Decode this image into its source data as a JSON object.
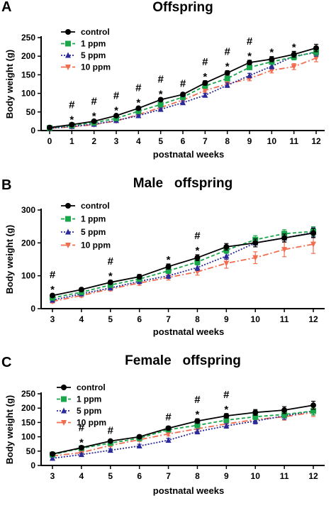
{
  "colors": {
    "control": "#000000",
    "1 ppm": "#1aa64a",
    "5 ppm": "#2b2a9a",
    "10 ppm": "#f26c4f"
  },
  "markers": {
    "control": "circle",
    "1 ppm": "square",
    "5 ppm": "triangle-up",
    "10 ppm": "triangle-down"
  },
  "chart_data": [
    {
      "type": "line",
      "panel": "A",
      "title": "Offspring",
      "xlabel": "postnatal weeks",
      "ylabel": "Body weight (g)",
      "x": [
        0,
        1,
        2,
        3,
        4,
        5,
        6,
        7,
        8,
        9,
        10,
        11,
        12
      ],
      "xlim": [
        0,
        12
      ],
      "ylim": [
        0,
        250
      ],
      "yticks": [
        0,
        50,
        100,
        150,
        200,
        250
      ],
      "legend_position": "top-left",
      "series": [
        {
          "name": "control",
          "values": [
            8,
            16,
            25,
            40,
            60,
            83,
            97,
            128,
            155,
            183,
            192,
            205,
            222
          ],
          "errors": [
            2,
            2,
            3,
            3,
            4,
            4,
            5,
            6,
            6,
            6,
            7,
            8,
            10
          ]
        },
        {
          "name": "1 ppm",
          "values": [
            7,
            14,
            21,
            33,
            52,
            70,
            90,
            120,
            140,
            170,
            185,
            198,
            212
          ],
          "errors": [
            2,
            2,
            3,
            3,
            4,
            4,
            5,
            6,
            6,
            6,
            7,
            8,
            10
          ]
        },
        {
          "name": "5 ppm",
          "values": [
            6,
            11,
            17,
            27,
            40,
            57,
            75,
            95,
            122,
            148,
            173,
            200,
            210
          ],
          "errors": [
            2,
            2,
            2,
            3,
            3,
            4,
            5,
            5,
            6,
            6,
            7,
            8,
            10
          ]
        },
        {
          "name": "10 ppm",
          "values": [
            6,
            10,
            16,
            26,
            43,
            62,
            82,
            108,
            125,
            140,
            162,
            172,
            195
          ],
          "errors": [
            2,
            2,
            2,
            3,
            3,
            4,
            5,
            5,
            6,
            6,
            7,
            8,
            10
          ]
        }
      ],
      "annotations": [
        {
          "x": 1,
          "marks": [
            "#",
            "*"
          ]
        },
        {
          "x": 2,
          "marks": [
            "#",
            "*"
          ]
        },
        {
          "x": 3,
          "marks": [
            "#",
            "*"
          ]
        },
        {
          "x": 4,
          "marks": [
            "#",
            "*"
          ]
        },
        {
          "x": 5,
          "marks": [
            "#",
            "*"
          ]
        },
        {
          "x": 6,
          "marks": [
            "#"
          ]
        },
        {
          "x": 7,
          "marks": [
            "#",
            "*"
          ]
        },
        {
          "x": 8,
          "marks": [
            "#",
            "*"
          ]
        },
        {
          "x": 9,
          "marks": [
            "#",
            "*"
          ]
        },
        {
          "x": 10,
          "marks": [
            "*"
          ]
        },
        {
          "x": 11,
          "marks": [
            "*"
          ]
        }
      ]
    },
    {
      "type": "line",
      "panel": "B",
      "title": "Male   offspring",
      "xlabel": "postnatal weeks",
      "ylabel": "Body weight (g)",
      "x": [
        3,
        4,
        5,
        6,
        7,
        8,
        9,
        10,
        11,
        12
      ],
      "xlim": [
        3,
        12
      ],
      "ylim": [
        0,
        300
      ],
      "yticks": [
        0,
        100,
        200,
        300
      ],
      "legend_position": "top-left",
      "series": [
        {
          "name": "control",
          "values": [
            40,
            58,
            80,
            97,
            128,
            155,
            188,
            200,
            215,
            230
          ],
          "errors": [
            5,
            5,
            6,
            7,
            8,
            9,
            10,
            12,
            12,
            14
          ]
        },
        {
          "name": "1 ppm",
          "values": [
            33,
            50,
            72,
            90,
            115,
            142,
            178,
            210,
            228,
            235
          ],
          "errors": [
            5,
            5,
            6,
            7,
            8,
            9,
            10,
            12,
            12,
            14
          ]
        },
        {
          "name": "5 ppm",
          "values": [
            26,
            45,
            63,
            83,
            100,
            125,
            160,
            200,
            215,
            232
          ],
          "errors": [
            5,
            5,
            6,
            7,
            8,
            9,
            10,
            12,
            12,
            14
          ]
        },
        {
          "name": "10 ppm",
          "values": [
            22,
            40,
            60,
            78,
            95,
            112,
            138,
            155,
            180,
            196
          ],
          "errors": [
            5,
            5,
            6,
            7,
            8,
            10,
            15,
            18,
            22,
            28
          ]
        }
      ],
      "annotations": [
        {
          "x": 3,
          "marks": [
            "#",
            "*"
          ]
        },
        {
          "x": 5,
          "marks": [
            "#",
            "*"
          ]
        },
        {
          "x": 7,
          "marks": [
            "*"
          ]
        },
        {
          "x": 8,
          "marks": [
            "#",
            "*"
          ]
        }
      ]
    },
    {
      "type": "line",
      "panel": "C",
      "title": "Female   offspring",
      "xlabel": "postnatal weeks",
      "ylabel": "Body weight (g)",
      "x": [
        3,
        4,
        5,
        6,
        7,
        8,
        9,
        10,
        11,
        12
      ],
      "xlim": [
        3,
        12
      ],
      "ylim": [
        0,
        250
      ],
      "yticks": [
        0,
        50,
        100,
        150,
        200,
        250
      ],
      "legend_position": "top-left",
      "series": [
        {
          "name": "control",
          "values": [
            40,
            62,
            85,
            100,
            130,
            155,
            173,
            185,
            193,
            210
          ],
          "errors": [
            3,
            4,
            5,
            6,
            7,
            8,
            8,
            10,
            12,
            14
          ]
        },
        {
          "name": "1 ppm",
          "values": [
            38,
            60,
            78,
            95,
            125,
            140,
            158,
            170,
            178,
            190
          ],
          "errors": [
            3,
            4,
            5,
            6,
            7,
            8,
            8,
            10,
            12,
            14
          ]
        },
        {
          "name": "5 ppm",
          "values": [
            25,
            38,
            53,
            68,
            88,
            118,
            138,
            155,
            173,
            190
          ],
          "errors": [
            3,
            4,
            5,
            6,
            7,
            8,
            8,
            10,
            12,
            14
          ]
        },
        {
          "name": "10 ppm",
          "values": [
            33,
            45,
            70,
            90,
            110,
            128,
            145,
            160,
            170,
            185
          ],
          "errors": [
            3,
            4,
            5,
            6,
            7,
            8,
            8,
            10,
            12,
            14
          ]
        }
      ],
      "annotations": [
        {
          "x": 4,
          "marks": [
            "#",
            "*"
          ]
        },
        {
          "x": 5,
          "marks": [
            "#"
          ]
        },
        {
          "x": 7,
          "marks": [
            "#"
          ]
        },
        {
          "x": 8,
          "marks": [
            "#",
            "*"
          ]
        },
        {
          "x": 9,
          "marks": [
            "#",
            "*"
          ]
        }
      ]
    }
  ]
}
